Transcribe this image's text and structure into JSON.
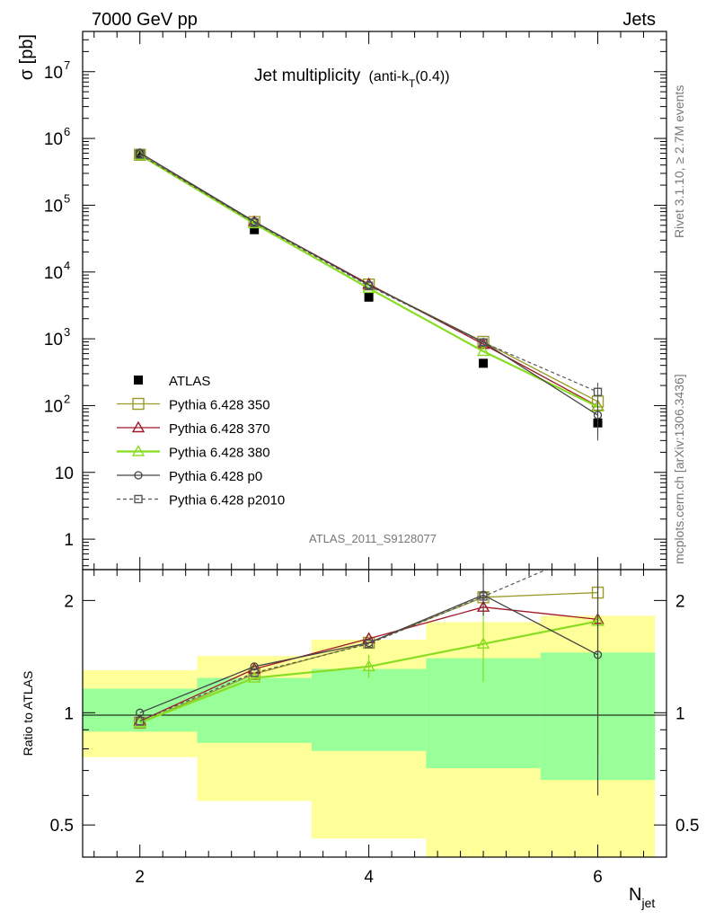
{
  "header": {
    "left_label": "7000 GeV pp",
    "right_label": "Jets",
    "title_main": "Jet multiplicity",
    "title_paren": "(anti-k",
    "title_sub": "T",
    "title_tail": "(0.4))"
  },
  "side_text": {
    "rivet": "Rivet 3.1.10, ≥ 2.7M events",
    "mcplots": "mcplots.cern.ch [arXiv:1306.3436]"
  },
  "analysis_label": "ATLAS_2011_S9128077",
  "colors": {
    "atlas": "#000000",
    "p350": "#9a9a2a",
    "p370": "#a01828",
    "p380": "#88dd22",
    "p0": "#444444",
    "p2010": "#555555",
    "band_inner": "#99ff99",
    "band_outer": "#ffff99"
  },
  "chart_data": [
    {
      "type": "scatter",
      "name": "main",
      "ylabel": "σ [pb]",
      "yscale": "log",
      "ylim": [
        0.35,
        40000000
      ],
      "xlim": [
        1.5,
        6.6
      ],
      "y_ticks": [
        {
          "v": 1,
          "label": "1"
        },
        {
          "v": 10,
          "label": "10"
        },
        {
          "v": 100,
          "base": "10",
          "exp": "2"
        },
        {
          "v": 1000,
          "base": "10",
          "exp": "3"
        },
        {
          "v": 10000,
          "base": "10",
          "exp": "4"
        },
        {
          "v": 100000,
          "base": "10",
          "exp": "5"
        },
        {
          "v": 1000000,
          "base": "10",
          "exp": "6"
        },
        {
          "v": 10000000,
          "base": "10",
          "exp": "7"
        }
      ],
      "legend": [
        "ATLAS",
        "Pythia 6.428 350",
        "Pythia 6.428 370",
        "Pythia 6.428 380",
        "Pythia 6.428 p0",
        "Pythia 6.428 p2010"
      ],
      "legend_position": "bottom-left",
      "series": [
        {
          "key": "atlas",
          "name": "ATLAS",
          "x": [
            2,
            3,
            4,
            5,
            6
          ],
          "y": [
            600000,
            43000,
            4200,
            430,
            55
          ],
          "yerr_hi": [
            660000,
            47000,
            4600,
            480,
            75
          ],
          "yerr_lo": [
            540000,
            39000,
            3800,
            380,
            35
          ]
        },
        {
          "key": "p350",
          "name": "Pythia 6.428 350",
          "x": [
            2,
            3,
            4,
            5,
            6
          ],
          "y": [
            570000,
            56000,
            6500,
            900,
            115
          ]
        },
        {
          "key": "p370",
          "name": "Pythia 6.428 370",
          "x": [
            2,
            3,
            4,
            5,
            6
          ],
          "y": [
            575000,
            56500,
            6600,
            830,
            98
          ]
        },
        {
          "key": "p380",
          "name": "Pythia 6.428 380",
          "x": [
            2,
            3,
            4,
            5,
            6
          ],
          "y": [
            565000,
            53000,
            5700,
            650,
            96
          ]
        },
        {
          "key": "p0",
          "name": "Pythia 6.428 p0",
          "x": [
            2,
            3,
            4,
            5,
            6
          ],
          "y": [
            610000,
            57000,
            6400,
            890,
            72
          ],
          "yerr_hi": [
            610000,
            57000,
            6400,
            950,
            160
          ],
          "yerr_lo": [
            610000,
            57000,
            6400,
            830,
            30
          ]
        },
        {
          "key": "p2010",
          "name": "Pythia 6.428 p2010",
          "x": [
            2,
            3,
            4,
            5,
            6
          ],
          "y": [
            575000,
            55000,
            6200,
            880,
            160
          ],
          "yerr_hi": [
            575000,
            55000,
            6200,
            920,
            220
          ],
          "yerr_lo": [
            575000,
            55000,
            6200,
            840,
            110
          ]
        }
      ]
    },
    {
      "type": "scatter",
      "name": "ratio",
      "ylabel": "Ratio to ATLAS",
      "xlabel": "N",
      "xlabel_sub": "jet",
      "yscale": "log",
      "ylim": [
        0.41,
        2.42
      ],
      "xlim": [
        1.5,
        6.6
      ],
      "x_ticks": [
        2,
        4,
        6
      ],
      "y_ticks": [
        {
          "v": 0.5,
          "label": "0.5"
        },
        {
          "v": 1,
          "label": "1"
        },
        {
          "v": 2,
          "label": "2"
        }
      ],
      "bands": [
        {
          "x0": 1.5,
          "x1": 2.5,
          "inner": [
            0.89,
            1.16
          ],
          "outer": [
            0.76,
            1.3
          ]
        },
        {
          "x0": 2.5,
          "x1": 3.5,
          "inner": [
            0.83,
            1.24
          ],
          "outer": [
            0.58,
            1.42
          ]
        },
        {
          "x0": 3.5,
          "x1": 4.5,
          "inner": [
            0.79,
            1.31
          ],
          "outer": [
            0.46,
            1.57
          ]
        },
        {
          "x0": 4.5,
          "x1": 5.5,
          "inner": [
            0.71,
            1.4
          ],
          "outer": [
            0.3,
            1.75
          ]
        },
        {
          "x0": 5.5,
          "x1": 6.5,
          "inner": [
            0.66,
            1.45
          ],
          "outer": [
            0.3,
            1.82
          ]
        }
      ],
      "series": [
        {
          "key": "p350",
          "x": [
            2,
            3,
            4,
            5,
            6
          ],
          "y": [
            0.94,
            1.27,
            1.54,
            2.04,
            2.1
          ]
        },
        {
          "key": "p370",
          "x": [
            2,
            3,
            4,
            5,
            6
          ],
          "y": [
            0.95,
            1.31,
            1.58,
            1.92,
            1.78
          ]
        },
        {
          "key": "p380",
          "x": [
            2,
            3,
            4,
            5,
            6
          ],
          "y": [
            0.94,
            1.24,
            1.33,
            1.53,
            1.76
          ],
          "yerr": [
            [
              2,
              0.94,
              0.94
            ],
            [
              3,
              1.24,
              1.24
            ],
            [
              4,
              1.24,
              1.43
            ],
            [
              5,
              1.21,
              1.93
            ],
            [
              6,
              0.78,
              2.4
            ]
          ]
        },
        {
          "key": "p0",
          "x": [
            2,
            3,
            4,
            5,
            6
          ],
          "y": [
            1.0,
            1.33,
            1.54,
            2.07,
            1.43
          ],
          "yerr": [
            [
              5,
              1.82,
              2.35
            ],
            [
              6,
              0.6,
              2.4
            ]
          ]
        },
        {
          "key": "p2010",
          "x": [
            2,
            3,
            4,
            5,
            5.55
          ],
          "y": [
            0.95,
            1.28,
            1.53,
            2.05,
            2.42
          ]
        }
      ]
    }
  ]
}
